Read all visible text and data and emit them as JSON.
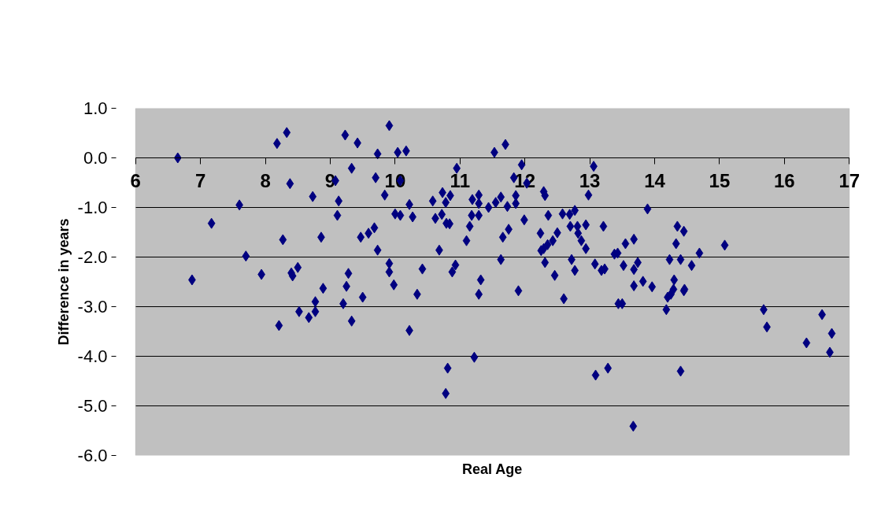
{
  "chart_data": {
    "type": "scatter",
    "xlabel": "Real Age",
    "ylabel": "Difference in years",
    "xlim": [
      6,
      17
    ],
    "xticks": [
      6,
      7,
      8,
      9,
      10,
      11,
      12,
      13,
      14,
      15,
      16,
      17
    ],
    "ylim": [
      -6,
      1
    ],
    "yticks": [
      {
        "value": 1,
        "label": "1.0"
      },
      {
        "value": 0,
        "label": "0.0"
      },
      {
        "value": -1,
        "label": "-1.0"
      },
      {
        "value": -2,
        "label": "-2.0"
      },
      {
        "value": -3,
        "label": "-3.0"
      },
      {
        "value": -4,
        "label": "-4.0"
      },
      {
        "value": -5,
        "label": "-5.0"
      },
      {
        "value": -6,
        "label": "-6.0"
      }
    ],
    "grid": "y",
    "marker": "diamond",
    "series": [
      {
        "color": "#000080",
        "x": [
          6.65,
          6.87,
          7.17,
          7.6,
          7.7,
          7.94,
          8.18,
          8.33,
          8.38,
          8.27,
          8.4,
          8.42,
          8.5,
          8.73,
          8.89,
          9.08,
          9.13,
          9.11,
          8.86,
          9.23,
          9.42,
          9.33,
          9.73,
          9.7,
          9.47,
          9.59,
          9.68,
          9.73,
          9.28,
          9.25,
          9.5,
          9.2,
          8.77,
          8.77,
          8.52,
          8.67,
          8.21,
          9.33,
          9.91,
          10.04,
          10.17,
          11.53,
          11.7,
          10.95,
          11.95,
          13.06,
          10.08,
          11.83,
          12.03,
          9.84,
          10.73,
          10.85,
          10.78,
          10.58,
          10.22,
          11.29,
          11.19,
          11.29,
          11.44,
          11.55,
          11.63,
          11.73,
          11.86,
          11.86,
          12.29,
          12.31,
          12.98,
          10.0,
          10.08,
          10.27,
          10.62,
          10.72,
          10.79,
          10.84,
          11.18,
          11.29,
          11.15,
          11.99,
          12.36,
          12.58,
          12.69,
          12.77,
          12.7,
          12.81,
          12.94,
          13.21,
          12.82,
          12.87,
          12.94,
          13.38,
          10.68,
          11.1,
          11.66,
          11.75,
          12.24,
          12.5,
          12.43,
          12.35,
          12.29,
          12.25,
          9.91,
          9.91,
          9.98,
          10.42,
          10.88,
          10.93,
          11.63,
          12.31,
          12.46,
          12.72,
          12.77,
          13.08,
          13.18,
          13.23,
          11.32,
          10.34,
          11.29,
          11.9,
          12.6,
          10.22,
          11.22,
          10.81,
          10.78,
          13.09,
          13.28,
          13.89,
          14.35,
          14.45,
          14.33,
          15.08,
          14.69,
          14.23,
          14.4,
          14.57,
          13.68,
          13.55,
          13.43,
          13.52,
          13.74,
          13.68,
          13.82,
          13.68,
          13.96,
          14.3,
          14.29,
          14.46,
          14.25,
          14.2,
          14.45,
          14.18,
          13.44,
          13.5,
          14.4,
          13.67,
          15.68,
          15.73,
          16.34,
          16.58,
          16.73,
          16.7
        ],
        "values": [
          0.0,
          -2.46,
          -1.32,
          -0.95,
          -1.98,
          -2.35,
          0.29,
          0.51,
          -0.52,
          -1.65,
          -2.32,
          -2.38,
          -2.21,
          -0.78,
          -2.63,
          -0.46,
          -0.87,
          -1.16,
          -1.6,
          0.46,
          0.3,
          -0.21,
          0.08,
          -0.4,
          -1.6,
          -1.52,
          -1.41,
          -1.86,
          -2.33,
          -2.59,
          -2.81,
          -2.94,
          -2.9,
          -3.1,
          -3.1,
          -3.22,
          -3.38,
          -3.29,
          0.65,
          0.11,
          0.14,
          0.11,
          0.27,
          -0.21,
          -0.14,
          -0.17,
          -0.46,
          -0.4,
          -0.51,
          -0.75,
          -0.7,
          -0.76,
          -0.9,
          -0.87,
          -0.94,
          -0.75,
          -0.84,
          -0.92,
          -1.0,
          -0.9,
          -0.79,
          -0.98,
          -0.92,
          -0.76,
          -0.68,
          -0.76,
          -0.75,
          -1.13,
          -1.16,
          -1.19,
          -1.22,
          -1.14,
          -1.32,
          -1.33,
          -1.16,
          -1.16,
          -1.38,
          -1.25,
          -1.16,
          -1.13,
          -1.14,
          -1.06,
          -1.38,
          -1.38,
          -1.35,
          -1.38,
          -1.52,
          -1.67,
          -1.83,
          -1.94,
          -1.86,
          -1.67,
          -1.6,
          -1.44,
          -1.52,
          -1.51,
          -1.67,
          -1.75,
          -1.83,
          -1.87,
          -2.13,
          -2.3,
          -2.56,
          -2.24,
          -2.3,
          -2.16,
          -2.05,
          -2.11,
          -2.37,
          -2.05,
          -2.27,
          -2.14,
          -2.27,
          -2.24,
          -2.46,
          -2.75,
          -2.75,
          -2.68,
          -2.84,
          -3.48,
          -4.02,
          -4.24,
          -4.75,
          -4.38,
          -4.24,
          -1.03,
          -1.38,
          -1.48,
          -1.73,
          -1.76,
          -1.92,
          -2.05,
          -2.05,
          -2.17,
          -1.64,
          -1.73,
          -1.92,
          -2.17,
          -2.11,
          -2.25,
          -2.49,
          -2.58,
          -2.6,
          -2.46,
          -2.65,
          -2.65,
          -2.75,
          -2.81,
          -2.68,
          -3.06,
          -2.94,
          -2.94,
          -4.3,
          -5.41,
          -3.06,
          -3.41,
          -3.73,
          -3.16,
          -3.54,
          -3.92
        ]
      }
    ]
  }
}
